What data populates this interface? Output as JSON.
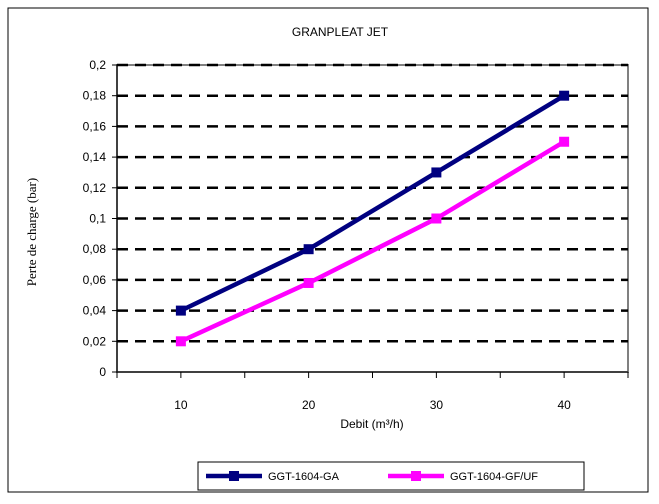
{
  "chart_data": {
    "type": "line",
    "title": "GRANPLEAT JET",
    "xlabel": "Debit (m³/h)",
    "ylabel": "Perte de charge (bar)",
    "x": [
      10,
      20,
      30,
      40
    ],
    "x_ticks": [
      "10",
      "20",
      "30",
      "40"
    ],
    "xlim": [
      5,
      45
    ],
    "ylim": [
      0,
      0.2
    ],
    "y_ticks": [
      "0",
      "0,02",
      "0,04",
      "0,06",
      "0,08",
      "0,1",
      "0,12",
      "0,14",
      "0,16",
      "0,18",
      "0,2"
    ],
    "grid": "horizontal dashed",
    "legend_position": "bottom",
    "series": [
      {
        "name": "GGT-1604-GA",
        "values": [
          0.04,
          0.08,
          0.13,
          0.18
        ],
        "color": "#000080"
      },
      {
        "name": "GGT-1604-GF/UF",
        "values": [
          0.02,
          0.058,
          0.1,
          0.15
        ],
        "color": "#FF00FF"
      }
    ]
  }
}
